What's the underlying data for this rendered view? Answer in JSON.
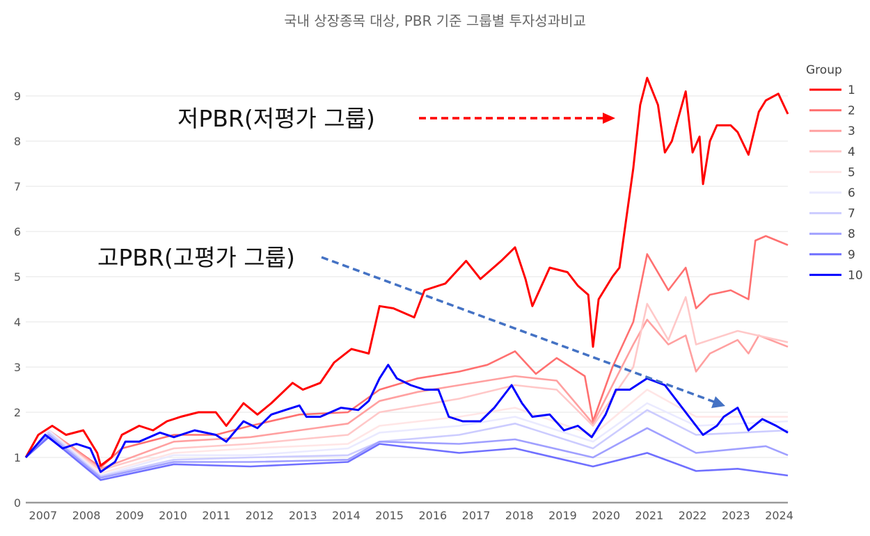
{
  "chart_data": {
    "type": "line",
    "title": "국내 상장종목 대상, PBR 기준 그룹별 투자성과비교",
    "xlabel": "",
    "ylabel": "",
    "xlim": [
      2006.6,
      2024.2
    ],
    "ylim": [
      0,
      9.6
    ],
    "xticks": [
      "2007",
      "2008",
      "2009",
      "2010",
      "2011",
      "2012",
      "2013",
      "2014",
      "2015",
      "2016",
      "2017",
      "2018",
      "2019",
      "2020",
      "2021",
      "2022",
      "2023",
      "2024"
    ],
    "yticks": [
      "0",
      "1",
      "2",
      "3",
      "4",
      "5",
      "6",
      "7",
      "8",
      "9"
    ],
    "grid": true,
    "legend": {
      "title": "Group",
      "placement": "right"
    },
    "annotations": [
      {
        "text": "저PBR(저평가 그룹)",
        "arrow_color": "#ff0000"
      },
      {
        "text": "고PBR(고평가 그룹)",
        "arrow_color": "#4472c4"
      }
    ],
    "series": [
      {
        "name": "1",
        "color": "#ff0000",
        "x": [
          2006.6,
          2006.89,
          2007.21,
          2007.53,
          2007.93,
          2008.25,
          2008.33,
          2008.58,
          2008.82,
          2009.22,
          2009.54,
          2009.86,
          2010.18,
          2010.59,
          2010.99,
          2011.23,
          2011.63,
          2011.95,
          2012.27,
          2012.76,
          2013.0,
          2013.4,
          2013.72,
          2014.12,
          2014.52,
          2014.77,
          2015.09,
          2015.57,
          2015.81,
          2016.29,
          2016.77,
          2017.1,
          2017.58,
          2017.9,
          2018.14,
          2018.3,
          2018.7,
          2019.11,
          2019.35,
          2019.59,
          2019.7,
          2019.83,
          2020.15,
          2020.31,
          2020.63,
          2020.79,
          2020.95,
          2021.2,
          2021.36,
          2021.52,
          2021.84,
          2022.0,
          2022.16,
          2022.24,
          2022.4,
          2022.56,
          2022.88,
          2023.04,
          2023.29,
          2023.53,
          2023.69,
          2023.98,
          2024.2
        ],
        "y": [
          1.0,
          1.5,
          1.7,
          1.5,
          1.6,
          1.1,
          0.82,
          1.0,
          1.5,
          1.7,
          1.6,
          1.8,
          1.9,
          2.0,
          2.0,
          1.7,
          2.2,
          1.95,
          2.2,
          2.65,
          2.5,
          2.65,
          3.1,
          3.4,
          3.3,
          4.35,
          4.3,
          4.1,
          4.7,
          4.85,
          5.35,
          4.95,
          5.35,
          5.65,
          4.95,
          4.35,
          5.2,
          5.1,
          4.8,
          4.6,
          3.45,
          4.5,
          5.0,
          5.2,
          7.4,
          8.8,
          9.4,
          8.8,
          7.75,
          8.0,
          9.1,
          7.75,
          8.1,
          7.05,
          8.0,
          8.35,
          8.35,
          8.2,
          7.7,
          8.65,
          8.9,
          9.05,
          8.6
        ]
      },
      {
        "name": "2",
        "color": "#ff7070",
        "x": [
          2006.6,
          2007.13,
          2008.33,
          2008.82,
          2010.02,
          2010.99,
          2011.79,
          2012.92,
          2014.04,
          2014.77,
          2015.65,
          2016.61,
          2017.26,
          2017.9,
          2018.38,
          2018.86,
          2019.51,
          2019.7,
          2020.15,
          2020.63,
          2020.95,
          2021.44,
          2021.84,
          2022.08,
          2022.4,
          2022.88,
          2023.29,
          2023.45,
          2023.69,
          2024.2
        ],
        "y": [
          1.0,
          1.6,
          0.78,
          1.2,
          1.5,
          1.5,
          1.7,
          1.95,
          2.0,
          2.5,
          2.75,
          2.9,
          3.05,
          3.35,
          2.85,
          3.2,
          2.8,
          1.8,
          3.0,
          4.0,
          5.5,
          4.7,
          5.2,
          4.3,
          4.6,
          4.7,
          4.5,
          5.8,
          5.9,
          5.7
        ]
      },
      {
        "name": "3",
        "color": "#ffa0a0",
        "x": [
          2006.6,
          2007.13,
          2008.33,
          2010.02,
          2011.79,
          2012.92,
          2014.04,
          2014.77,
          2015.65,
          2016.61,
          2017.9,
          2018.86,
          2019.7,
          2020.15,
          2020.63,
          2020.95,
          2021.44,
          2021.84,
          2022.08,
          2022.4,
          2023.04,
          2023.29,
          2023.53,
          2024.2
        ],
        "y": [
          1.0,
          1.6,
          0.75,
          1.35,
          1.45,
          1.6,
          1.75,
          2.25,
          2.45,
          2.6,
          2.8,
          2.7,
          1.75,
          2.6,
          3.5,
          4.05,
          3.5,
          3.7,
          2.9,
          3.3,
          3.6,
          3.3,
          3.7,
          3.45
        ]
      },
      {
        "name": "4",
        "color": "#ffc8c8",
        "x": [
          2006.6,
          2007.13,
          2008.33,
          2010.02,
          2011.79,
          2014.04,
          2014.77,
          2016.61,
          2017.9,
          2018.86,
          2019.7,
          2020.63,
          2020.95,
          2021.44,
          2021.84,
          2022.08,
          2023.04,
          2024.2
        ],
        "y": [
          1.0,
          1.55,
          0.72,
          1.2,
          1.3,
          1.5,
          2.0,
          2.3,
          2.6,
          2.5,
          1.7,
          3.0,
          4.4,
          3.6,
          4.55,
          3.5,
          3.8,
          3.55
        ]
      },
      {
        "name": "5",
        "color": "#ffe6e6",
        "x": [
          2006.6,
          2007.13,
          2008.33,
          2010.02,
          2011.79,
          2014.04,
          2014.77,
          2016.61,
          2017.9,
          2019.7,
          2020.95,
          2022.08,
          2024.2
        ],
        "y": [
          1.0,
          1.6,
          0.65,
          1.1,
          1.2,
          1.3,
          1.7,
          1.9,
          2.1,
          1.5,
          2.5,
          1.9,
          1.9
        ]
      },
      {
        "name": "6",
        "color": "#eaeaff",
        "x": [
          2006.6,
          2007.13,
          2008.33,
          2010.02,
          2011.79,
          2014.04,
          2014.77,
          2016.61,
          2017.9,
          2019.7,
          2020.95,
          2022.08,
          2024.2
        ],
        "y": [
          1.0,
          1.6,
          0.6,
          1.05,
          1.05,
          1.2,
          1.55,
          1.7,
          1.9,
          1.35,
          2.2,
          1.7,
          1.8
        ]
      },
      {
        "name": "7",
        "color": "#ccccff",
        "x": [
          2006.6,
          2007.13,
          2008.33,
          2010.02,
          2011.79,
          2014.04,
          2014.77,
          2016.61,
          2017.9,
          2019.7,
          2020.95,
          2022.08,
          2024.2
        ],
        "y": [
          1.0,
          1.55,
          0.58,
          0.95,
          1.0,
          1.05,
          1.35,
          1.5,
          1.75,
          1.2,
          2.05,
          1.5,
          1.6
        ]
      },
      {
        "name": "8",
        "color": "#a0a0ff",
        "x": [
          2006.6,
          2007.13,
          2008.33,
          2010.02,
          2011.79,
          2014.04,
          2014.77,
          2016.61,
          2017.9,
          2019.7,
          2020.95,
          2022.08,
          2023.69,
          2024.2
        ],
        "y": [
          1.0,
          1.5,
          0.55,
          0.9,
          0.9,
          0.95,
          1.35,
          1.3,
          1.4,
          1.0,
          1.65,
          1.1,
          1.25,
          1.05
        ]
      },
      {
        "name": "9",
        "color": "#7070ff",
        "x": [
          2006.6,
          2007.13,
          2008.33,
          2010.02,
          2011.79,
          2014.04,
          2014.77,
          2016.61,
          2017.9,
          2019.7,
          2020.95,
          2022.08,
          2023.04,
          2024.2
        ],
        "y": [
          1.0,
          1.45,
          0.5,
          0.85,
          0.8,
          0.9,
          1.3,
          1.1,
          1.2,
          0.8,
          1.1,
          0.7,
          0.75,
          0.6
        ]
      },
      {
        "name": "10",
        "color": "#0000ff",
        "x": [
          2006.6,
          2007.05,
          2007.45,
          2007.77,
          2008.09,
          2008.33,
          2008.66,
          2008.9,
          2009.22,
          2009.7,
          2010.02,
          2010.5,
          2010.99,
          2011.23,
          2011.63,
          2011.95,
          2012.27,
          2012.59,
          2012.92,
          2013.08,
          2013.4,
          2013.88,
          2014.28,
          2014.52,
          2014.77,
          2014.97,
          2015.17,
          2015.49,
          2015.81,
          2016.13,
          2016.37,
          2016.69,
          2017.1,
          2017.42,
          2017.82,
          2018.06,
          2018.3,
          2018.7,
          2019.03,
          2019.35,
          2019.67,
          2019.99,
          2020.23,
          2020.55,
          2020.95,
          2021.36,
          2021.68,
          2022.0,
          2022.24,
          2022.56,
          2022.72,
          2023.04,
          2023.29,
          2023.61,
          2023.93,
          2024.2
        ],
        "y": [
          1.0,
          1.5,
          1.2,
          1.3,
          1.2,
          0.68,
          0.9,
          1.35,
          1.35,
          1.55,
          1.45,
          1.6,
          1.5,
          1.35,
          1.8,
          1.65,
          1.95,
          2.05,
          2.15,
          1.9,
          1.9,
          2.1,
          2.05,
          2.25,
          2.75,
          3.05,
          2.75,
          2.6,
          2.5,
          2.5,
          1.9,
          1.8,
          1.8,
          2.1,
          2.6,
          2.2,
          1.9,
          1.95,
          1.6,
          1.7,
          1.45,
          1.95,
          2.5,
          2.5,
          2.75,
          2.6,
          2.2,
          1.8,
          1.5,
          1.7,
          1.9,
          2.1,
          1.6,
          1.85,
          1.7,
          1.55
        ]
      }
    ]
  }
}
